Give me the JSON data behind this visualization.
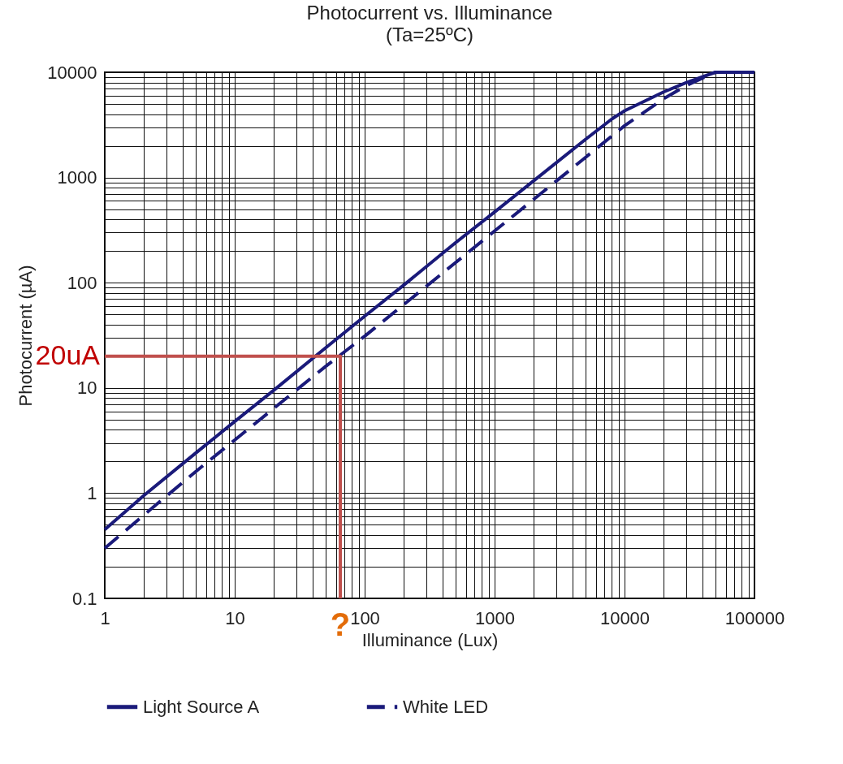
{
  "chart_data": {
    "type": "line",
    "title": "Photocurrent vs. Illuminance",
    "subtitle": "(Ta=25ºC)",
    "xlabel": "Illuminance (Lux)",
    "ylabel": "Photocurrent (µA)",
    "log": "xy",
    "grid": true,
    "legend": "bottom",
    "xlim": [
      1,
      100000
    ],
    "ylim": [
      0.1,
      10000
    ],
    "xticks": [
      1,
      {
        "value": 2,
        "label": null
      },
      {
        "value": 3,
        "label": null
      },
      {
        "value": 4,
        "label": null
      },
      {
        "value": 5,
        "label": null
      },
      {
        "value": 6,
        "label": null
      },
      {
        "value": 7,
        "label": null
      },
      {
        "value": 8,
        "label": null
      },
      {
        "value": 9,
        "label": null
      },
      10,
      {
        "value": 20,
        "label": null
      },
      {
        "value": 30,
        "label": null
      },
      {
        "value": 40,
        "label": null
      },
      {
        "value": 50,
        "label": null
      },
      {
        "value": 60,
        "label": null
      },
      {
        "value": 70,
        "label": null
      },
      {
        "value": 80,
        "label": null
      },
      {
        "value": 90,
        "label": null
      },
      100,
      {
        "value": 200,
        "label": null
      },
      {
        "value": 300,
        "label": null
      },
      {
        "value": 400,
        "label": null
      },
      {
        "value": 500,
        "label": null
      },
      {
        "value": 600,
        "label": null
      },
      {
        "value": 700,
        "label": null
      },
      {
        "value": 800,
        "label": null
      },
      {
        "value": 900,
        "label": null
      },
      1000,
      {
        "value": 2000,
        "label": null
      },
      {
        "value": 3000,
        "label": null
      },
      {
        "value": 4000,
        "label": null
      },
      {
        "value": 5000,
        "label": null
      },
      {
        "value": 6000,
        "label": null
      },
      {
        "value": 7000,
        "label": null
      },
      {
        "value": 8000,
        "label": null
      },
      {
        "value": 9000,
        "label": null
      },
      10000,
      {
        "value": 20000,
        "label": null
      },
      {
        "value": 30000,
        "label": null
      },
      {
        "value": 40000,
        "label": null
      },
      {
        "value": 50000,
        "label": null
      },
      {
        "value": 60000,
        "label": null
      },
      {
        "value": 70000,
        "label": null
      },
      {
        "value": 80000,
        "label": null
      },
      {
        "value": 90000,
        "label": null
      },
      100000
    ],
    "yticks": [
      0.1,
      {
        "value": 0.2,
        "label": null
      },
      {
        "value": 0.3,
        "label": null
      },
      {
        "value": 0.4,
        "label": null
      },
      {
        "value": 0.5,
        "label": null
      },
      {
        "value": 0.6,
        "label": null
      },
      {
        "value": 0.7,
        "label": null
      },
      {
        "value": 0.8,
        "label": null
      },
      {
        "value": 0.9,
        "label": null
      },
      1,
      {
        "value": 2,
        "label": null
      },
      {
        "value": 3,
        "label": null
      },
      {
        "value": 4,
        "label": null
      },
      {
        "value": 5,
        "label": null
      },
      {
        "value": 6,
        "label": null
      },
      {
        "value": 7,
        "label": null
      },
      {
        "value": 8,
        "label": null
      },
      {
        "value": 9,
        "label": null
      },
      10,
      {
        "value": 20,
        "label": null
      },
      {
        "value": 30,
        "label": null
      },
      {
        "value": 40,
        "label": null
      },
      {
        "value": 50,
        "label": null
      },
      {
        "value": 60,
        "label": null
      },
      {
        "value": 70,
        "label": null
      },
      {
        "value": 80,
        "label": null
      },
      {
        "value": 90,
        "label": null
      },
      100,
      {
        "value": 200,
        "label": null
      },
      {
        "value": 300,
        "label": null
      },
      {
        "value": 400,
        "label": null
      },
      {
        "value": 500,
        "label": null
      },
      {
        "value": 600,
        "label": null
      },
      {
        "value": 700,
        "label": null
      },
      {
        "value": 800,
        "label": null
      },
      {
        "value": 900,
        "label": null
      },
      1000,
      {
        "value": 2000,
        "label": null
      },
      {
        "value": 3000,
        "label": null
      },
      {
        "value": 4000,
        "label": null
      },
      {
        "value": 5000,
        "label": null
      },
      {
        "value": 6000,
        "label": null
      },
      {
        "value": 7000,
        "label": null
      },
      {
        "value": 8000,
        "label": null
      },
      {
        "value": 9000,
        "label": null
      },
      10000
    ],
    "series": [
      {
        "name": "Light Source A",
        "color": "#1a1a7a",
        "line_style": "solid",
        "x": [
          1,
          2,
          5,
          10,
          20,
          50,
          100,
          200,
          500,
          1000,
          2000,
          5000,
          8000,
          10000,
          20000,
          30000,
          50000,
          100000
        ],
        "values": [
          0.45,
          0.95,
          2.4,
          4.8,
          9.5,
          24,
          48,
          95,
          240,
          470,
          930,
          2300,
          3600,
          4300,
          6500,
          8000,
          10000,
          10000
        ]
      },
      {
        "name": "White LED",
        "color": "#1a1a7a",
        "line_style": "dashed",
        "x": [
          1,
          2,
          5,
          10,
          20,
          50,
          100,
          200,
          500,
          1000,
          2000,
          5000,
          10000,
          20000,
          30000,
          50000,
          100000
        ],
        "values": [
          0.3,
          0.62,
          1.6,
          3.2,
          6.4,
          16,
          31,
          62,
          155,
          310,
          620,
          1550,
          3100,
          5600,
          7500,
          10000,
          10000
        ]
      },
      {
        "color": "#c0504d",
        "line_style": "solid",
        "x": [
          1,
          65,
          65
        ],
        "values": [
          20,
          20,
          0.1
        ]
      }
    ],
    "annotations": [
      {
        "text": "20uA",
        "x": 1,
        "y": 20
      },
      {
        "text": "?",
        "x": 65,
        "y": 0.1
      }
    ]
  }
}
